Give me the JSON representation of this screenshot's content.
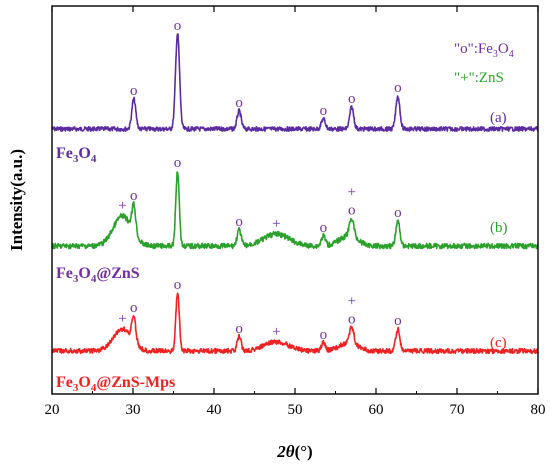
{
  "chart_data": {
    "type": "line",
    "xlabel_main": "2θ",
    "xlabel_unit": "(°)",
    "ylabel": "Intensity(a.u.)",
    "xlim": [
      20,
      80
    ],
    "x_ticks": [
      "20",
      "30",
      "40",
      "50",
      "60",
      "70",
      "80"
    ],
    "y_ticks": [],
    "grid": false,
    "legend_note": {
      "o_label": "\"o\":Fe",
      "o_label_sub": "3",
      "o_label_mid": "O",
      "o_label_sub2": "4",
      "plus_label": "\"+\":ZnS",
      "o_color": "#7030A0",
      "plus_color": "#2CA02C"
    },
    "series": [
      {
        "name_parts": [
          "Fe",
          "3",
          "O",
          "4"
        ],
        "tag": "(a)",
        "color": "#5B2C9F",
        "label_color": "#5B2C9F",
        "baseline": 129,
        "noise": 2.2,
        "peaks": [
          {
            "x": 30.1,
            "h": 30,
            "w": 0.35,
            "marker": "o"
          },
          {
            "x": 35.5,
            "h": 95,
            "w": 0.35,
            "marker": "o"
          },
          {
            "x": 43.1,
            "h": 18,
            "w": 0.35,
            "marker": "o"
          },
          {
            "x": 53.5,
            "h": 10,
            "w": 0.35,
            "marker": "o"
          },
          {
            "x": 57.0,
            "h": 22,
            "w": 0.35,
            "marker": "o"
          },
          {
            "x": 62.7,
            "h": 33,
            "w": 0.35,
            "marker": "o"
          }
        ],
        "broad": []
      },
      {
        "name_parts": [
          "Fe",
          "3",
          "O",
          "4",
          "@ZnS"
        ],
        "tag": "(b)",
        "color": "#2CA02C",
        "label_color": "#7030A0",
        "baseline": 246,
        "noise": 2.6,
        "peaks": [
          {
            "x": 30.1,
            "h": 28,
            "w": 0.35,
            "marker": "o"
          },
          {
            "x": 35.5,
            "h": 75,
            "w": 0.3,
            "marker": "o"
          },
          {
            "x": 43.1,
            "h": 16,
            "w": 0.35,
            "marker": "o"
          },
          {
            "x": 53.5,
            "h": 10,
            "w": 0.35,
            "marker": "o"
          },
          {
            "x": 57.0,
            "h": 18,
            "w": 0.4,
            "marker": "+o"
          },
          {
            "x": 62.7,
            "h": 25,
            "w": 0.35,
            "marker": "o"
          }
        ],
        "broad": [
          {
            "x": 28.7,
            "h": 30,
            "w": 1.6,
            "marker": "+"
          },
          {
            "x": 47.7,
            "h": 12,
            "w": 2.2,
            "marker": "+"
          },
          {
            "x": 56.6,
            "h": 10,
            "w": 1.6,
            "marker": ""
          }
        ]
      },
      {
        "name_parts": [
          "Fe",
          "3",
          "O",
          "4",
          "@ZnS-Mps"
        ],
        "tag": "(c)",
        "color": "#EE2222",
        "label_color": "#EE2222",
        "baseline": 351,
        "noise": 2.4,
        "peaks": [
          {
            "x": 30.1,
            "h": 25,
            "w": 0.35,
            "marker": "o"
          },
          {
            "x": 35.5,
            "h": 58,
            "w": 0.3,
            "marker": "o"
          },
          {
            "x": 43.1,
            "h": 14,
            "w": 0.35,
            "marker": "o"
          },
          {
            "x": 53.5,
            "h": 8,
            "w": 0.35,
            "marker": "o"
          },
          {
            "x": 57.0,
            "h": 16,
            "w": 0.4,
            "marker": "+o"
          },
          {
            "x": 62.7,
            "h": 22,
            "w": 0.35,
            "marker": "o"
          }
        ],
        "broad": [
          {
            "x": 28.7,
            "h": 22,
            "w": 1.6,
            "marker": "+"
          },
          {
            "x": 47.7,
            "h": 9,
            "w": 2.2,
            "marker": "+"
          },
          {
            "x": 56.6,
            "h": 8,
            "w": 1.6,
            "marker": ""
          }
        ]
      }
    ]
  }
}
